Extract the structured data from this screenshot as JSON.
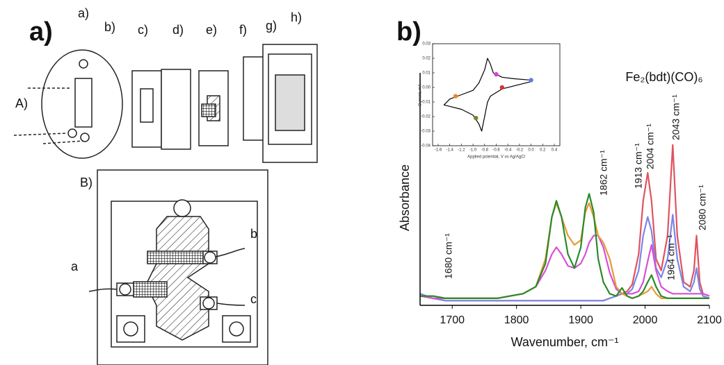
{
  "panel_a": {
    "label": "a)",
    "parts": [
      "a)",
      "b)",
      "c)",
      "d)",
      "e)",
      "f)",
      "g)",
      "h)"
    ],
    "view_labels": [
      "A)",
      "B)"
    ],
    "cell_labels": [
      "a",
      "b",
      "c"
    ]
  },
  "panel_b_label": "b)",
  "chart_data": [
    {
      "type": "line",
      "title": "Fe₂(bdt)(CO)₆",
      "xlabel": "Wavenumber, cm⁻¹",
      "ylabel": "Absorbance",
      "annotations": [
        "1680 cm⁻¹",
        "1862 cm⁻¹",
        "1913 cm⁻¹",
        "1964 cm⁻¹",
        "2004 cm⁻¹",
        "2043 cm⁻¹",
        "2080 cm⁻¹"
      ],
      "x": [
        1650,
        1670,
        1690,
        1710,
        1730,
        1750,
        1770,
        1790,
        1810,
        1830,
        1845,
        1855,
        1862,
        1870,
        1880,
        1890,
        1900,
        1907,
        1913,
        1920,
        1927,
        1935,
        1945,
        1955,
        1964,
        1972,
        1980,
        1990,
        1997,
        2004,
        2010,
        2017,
        2025,
        2035,
        2043,
        2050,
        2060,
        2070,
        2076,
        2080,
        2085,
        2090,
        2100
      ],
      "xlim": [
        1650,
        2100
      ],
      "xticks": [
        1700,
        1800,
        1900,
        2000,
        2100
      ],
      "ylim": [
        0,
        1
      ],
      "series": [
        {
          "color": "#e0525f",
          "values": [
            0.05,
            0.03,
            0.02,
            0.02,
            0.02,
            0.02,
            0.02,
            0.02,
            0.02,
            0.02,
            0.02,
            0.02,
            0.02,
            0.02,
            0.02,
            0.02,
            0.02,
            0.02,
            0.02,
            0.02,
            0.02,
            0.02,
            0.03,
            0.04,
            0.05,
            0.06,
            0.09,
            0.22,
            0.45,
            0.57,
            0.45,
            0.2,
            0.15,
            0.3,
            0.69,
            0.3,
            0.1,
            0.08,
            0.15,
            0.3,
            0.1,
            0.05,
            0.04
          ]
        },
        {
          "color": "#7a86e6",
          "values": [
            0.05,
            0.03,
            0.02,
            0.02,
            0.02,
            0.02,
            0.02,
            0.02,
            0.02,
            0.02,
            0.02,
            0.02,
            0.02,
            0.02,
            0.02,
            0.02,
            0.02,
            0.02,
            0.02,
            0.02,
            0.02,
            0.02,
            0.03,
            0.04,
            0.05,
            0.05,
            0.07,
            0.15,
            0.3,
            0.38,
            0.32,
            0.16,
            0.12,
            0.2,
            0.39,
            0.2,
            0.08,
            0.06,
            0.1,
            0.16,
            0.07,
            0.04,
            0.03
          ]
        },
        {
          "color": "#d84fd8",
          "values": [
            0.04,
            0.03,
            0.03,
            0.03,
            0.03,
            0.03,
            0.03,
            0.04,
            0.05,
            0.08,
            0.15,
            0.22,
            0.25,
            0.22,
            0.17,
            0.16,
            0.18,
            0.22,
            0.27,
            0.3,
            0.3,
            0.25,
            0.14,
            0.07,
            0.05,
            0.05,
            0.05,
            0.06,
            0.1,
            0.19,
            0.26,
            0.15,
            0.08,
            0.06,
            0.05,
            0.05,
            0.05,
            0.05,
            0.05,
            0.05,
            0.05,
            0.05,
            0.04
          ]
        },
        {
          "color": "#e69a35",
          "values": [
            0.04,
            0.04,
            0.03,
            0.03,
            0.03,
            0.03,
            0.03,
            0.04,
            0.05,
            0.08,
            0.2,
            0.38,
            0.44,
            0.38,
            0.3,
            0.26,
            0.28,
            0.4,
            0.44,
            0.38,
            0.3,
            0.27,
            0.2,
            0.08,
            0.05,
            0.04,
            0.03,
            0.04,
            0.05,
            0.06,
            0.08,
            0.05,
            0.03,
            0.03,
            0.03,
            0.03,
            0.03,
            0.03,
            0.03,
            0.03,
            0.03,
            0.03,
            0.03
          ]
        },
        {
          "color": "#2a8a2a",
          "values": [
            0.04,
            0.04,
            0.03,
            0.03,
            0.03,
            0.03,
            0.03,
            0.04,
            0.05,
            0.08,
            0.18,
            0.38,
            0.45,
            0.38,
            0.22,
            0.16,
            0.25,
            0.42,
            0.48,
            0.4,
            0.2,
            0.1,
            0.05,
            0.04,
            0.075,
            0.04,
            0.03,
            0.04,
            0.06,
            0.1,
            0.13,
            0.08,
            0.04,
            0.03,
            0.03,
            0.03,
            0.03,
            0.03,
            0.03,
            0.03,
            0.03,
            0.03,
            0.03
          ]
        }
      ]
    },
    {
      "type": "line",
      "xlabel": "Applied potential, V vs Ag/AgCl",
      "ylabel": "Current, mA",
      "xlim": [
        -1.6,
        0.4
      ],
      "ylim": [
        -0.04,
        0.03
      ],
      "xticks": [
        -1.6,
        -1.4,
        -1.2,
        {
          "value": -1,
          "label": "-1.0"
        },
        -0.8,
        -0.6,
        -0.4,
        -0.2,
        {
          "value": 0,
          "label": "0.0"
        },
        0.2,
        0.4
      ],
      "yticks": [
        0.03,
        0.02,
        0.01,
        {
          "value": 0,
          "label": "0.00"
        },
        -0.01,
        -0.02,
        -0.03,
        -0.04
      ],
      "series": [
        {
          "color": "#000000",
          "x": [
            0,
            -0.3,
            -0.5,
            -0.65,
            -0.7,
            -0.75,
            -0.8,
            -0.9,
            -1.0,
            -1.2,
            -1.4,
            -1.5,
            -1.4,
            -1.2,
            -1.0,
            -0.9,
            -0.85,
            -0.8,
            -0.75,
            -0.7,
            -0.5,
            -0.2,
            0
          ],
          "values": [
            0.005,
            0.006,
            0.007,
            0.01,
            0.016,
            0.02,
            0.012,
            0.003,
            -0.002,
            -0.005,
            -0.008,
            -0.012,
            -0.013,
            -0.015,
            -0.019,
            -0.025,
            -0.03,
            -0.02,
            -0.01,
            -0.006,
            -0.001,
            0.002,
            0.004
          ]
        }
      ],
      "markers": {
        "x": [
          0,
          -0.6,
          -0.5,
          -1.3,
          -0.95
        ],
        "values": [
          0.005,
          0.009,
          0,
          -0.006,
          -0.021
        ],
        "colors": [
          "#6a78e0",
          "#d83fd8",
          "#d8303a",
          "#e8892a",
          "#6f8a2a"
        ]
      }
    }
  ]
}
